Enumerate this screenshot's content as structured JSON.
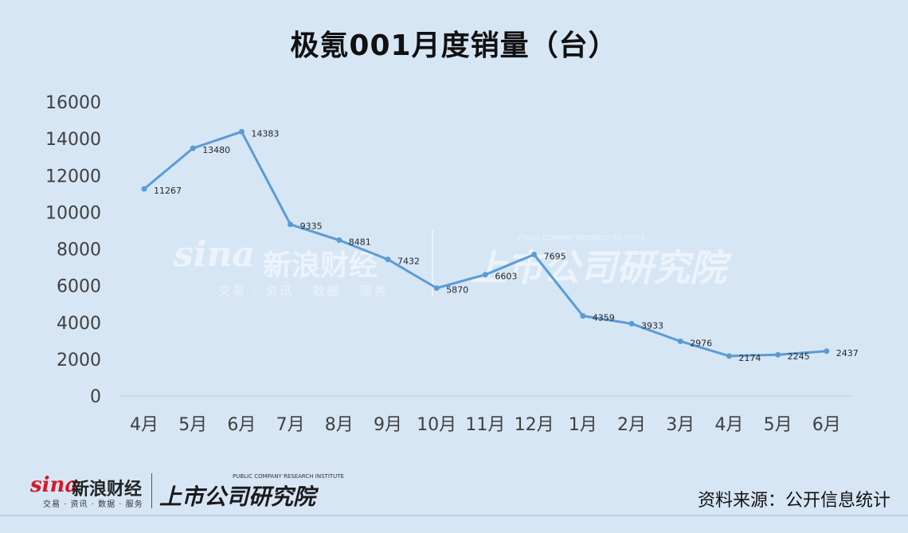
{
  "header": {
    "title": "极氪001月度销量（台）"
  },
  "footer": {
    "source": "资料来源：公开信息统计",
    "sina_mark": "sina",
    "sina_name": "新浪财经",
    "sina_sub": "交易 · 资讯 · 数据 · 服务",
    "inst_en": "PUBLIC COMPANY RESEARCH INSTITUTE",
    "inst_cn": "上市公司研究院"
  },
  "watermark": {
    "sina_mark": "sina",
    "sina_name": "新浪财经",
    "sina_sub": "交易 · 资讯 · 数据 · 服务",
    "inst_en": "PUBLIC COMPANY RESEARCH INSTITUTE",
    "inst_cn": "上市公司研究院"
  },
  "chart_data": {
    "type": "line",
    "categories": [
      "4月",
      "5月",
      "6月",
      "7月",
      "8月",
      "9月",
      "10月",
      "11月",
      "12月",
      "1月",
      "2月",
      "3月",
      "4月",
      "5月",
      "6月"
    ],
    "series": [
      {
        "values": [
          11267,
          13480,
          14383,
          9335,
          8481,
          7432,
          5870,
          6603,
          7695,
          4359,
          3933,
          2976,
          2174,
          2245,
          2437
        ],
        "color": "#5b9bd5"
      }
    ],
    "title": "极氪001月度销量（台）",
    "xlabel": "",
    "ylabel": "",
    "ylim": [
      0,
      16000
    ],
    "yticks": [
      0,
      2000,
      4000,
      6000,
      8000,
      10000,
      12000,
      14000,
      16000
    ],
    "grid": false,
    "legend": "none",
    "data_labels": true
  }
}
